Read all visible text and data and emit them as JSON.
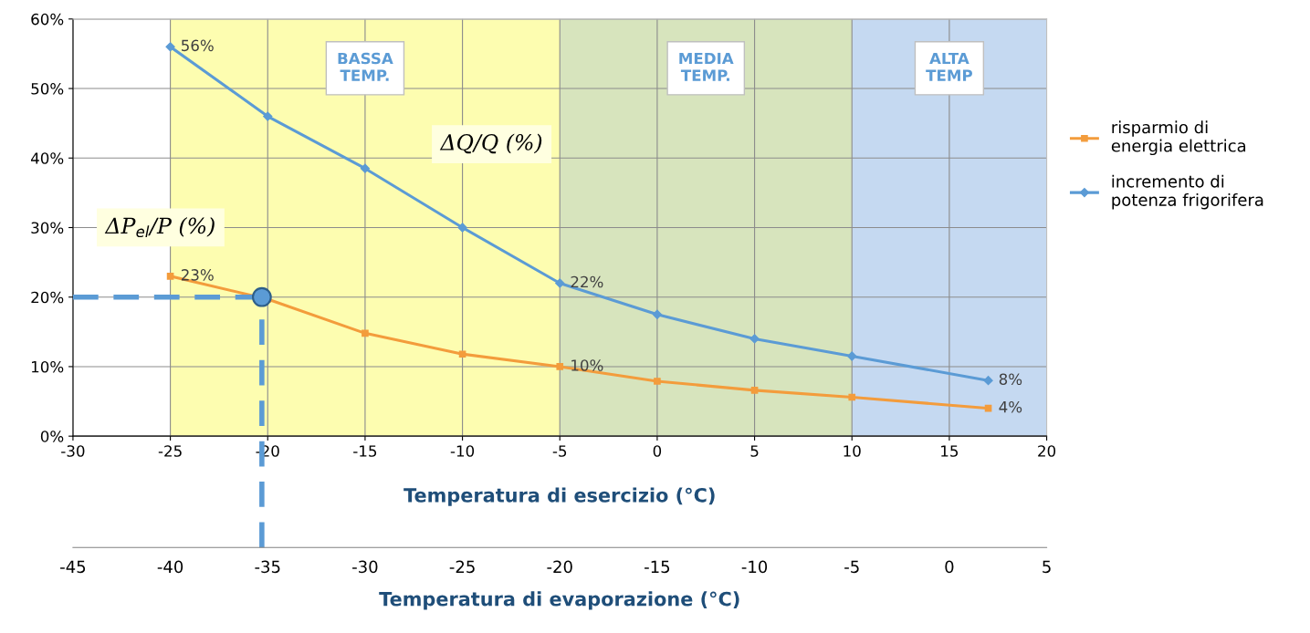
{
  "chart_data": {
    "type": "line",
    "xlabel": "Temperatura di esercizio (°C)",
    "x2label": "Temperatura di evaporazione (°C)",
    "x": [
      -25,
      -20,
      -15,
      -10,
      -5,
      0,
      5,
      10,
      17
    ],
    "xlim": [
      -30,
      20
    ],
    "xticks": [
      -30,
      -25,
      -20,
      -15,
      -10,
      -5,
      0,
      5,
      10,
      15,
      20
    ],
    "x2lim": [
      -45,
      5
    ],
    "x2ticks": [
      -45,
      -40,
      -35,
      -30,
      -25,
      -20,
      -15,
      -10,
      -5,
      0,
      5
    ],
    "ylim": [
      0,
      60
    ],
    "yticks": [
      {
        "value": 0,
        "label": "0%"
      },
      {
        "value": 10,
        "label": "10%"
      },
      {
        "value": 20,
        "label": "20%"
      },
      {
        "value": 30,
        "label": "30%"
      },
      {
        "value": 40,
        "label": "40%"
      },
      {
        "value": 50,
        "label": "50%"
      },
      {
        "value": 60,
        "label": "60%"
      }
    ],
    "series": [
      {
        "name": "risparmio di\nenergia elettrica",
        "color": "#f39c3c",
        "marker": "square",
        "values": [
          23,
          19.7,
          14.8,
          11.8,
          10,
          7.9,
          6.6,
          5.6,
          4
        ],
        "value_labels": [
          "23%",
          null,
          null,
          null,
          "10%",
          null,
          null,
          null,
          "4%"
        ]
      },
      {
        "name": "incremento di\npotenza frigorifera",
        "color": "#5b9bd5",
        "marker": "diamond",
        "values": [
          56,
          46,
          38.5,
          30,
          22,
          17.5,
          14,
          11.5,
          8
        ],
        "value_labels": [
          "56%",
          null,
          null,
          null,
          "22%",
          null,
          null,
          null,
          "8%"
        ]
      },
      {
        "type": "scatter",
        "color": "#5b9bd5",
        "marker": "circle",
        "x": [
          -20.3
        ],
        "values": [
          20
        ]
      }
    ],
    "bands": [
      {
        "axis": "x",
        "from": -25,
        "to": -5,
        "label": "BASSA\nTEMP.",
        "color": "#fdfdb0"
      },
      {
        "axis": "x",
        "from": -5,
        "to": 10,
        "label": "MEDIA\nTEMP.",
        "color": "#d7e4bd"
      },
      {
        "axis": "x",
        "from": 10,
        "to": 20,
        "label": "ALTA\nTEMP",
        "color": "#c5d9f1"
      }
    ],
    "ref_lines": [
      {
        "axis": "y",
        "value": 20,
        "color": "#5b9bd5",
        "line_style": "dashed"
      },
      {
        "axis": "x",
        "value": -20.3,
        "color": "#5b9bd5",
        "line_style": "dashed"
      }
    ],
    "annotations": [
      "ΔP$_{el}$/P (%)",
      "ΔQ/Q (%)"
    ],
    "grid": true,
    "legend": "right"
  }
}
